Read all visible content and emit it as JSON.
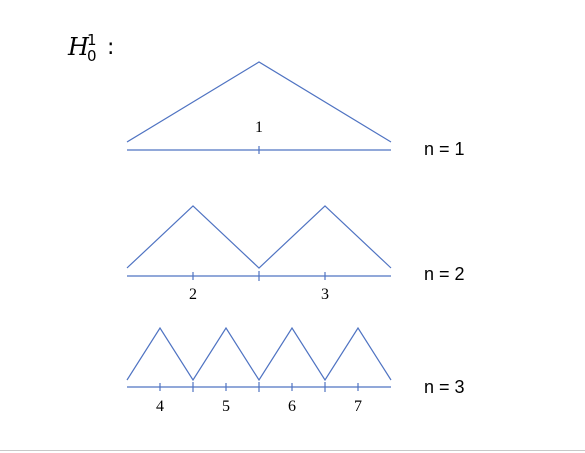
{
  "title": {
    "base": "H",
    "sup": "1",
    "sub": "0",
    "colon": ":"
  },
  "colors": {
    "line": "#4f73c2",
    "text": "#000000"
  },
  "levels": [
    {
      "label": "n = 1",
      "indices": [
        "1"
      ]
    },
    {
      "label": "n = 2",
      "indices": [
        "2",
        "3"
      ]
    },
    {
      "label": "n = 3",
      "indices": [
        "4",
        "5",
        "6",
        "7"
      ]
    }
  ]
}
